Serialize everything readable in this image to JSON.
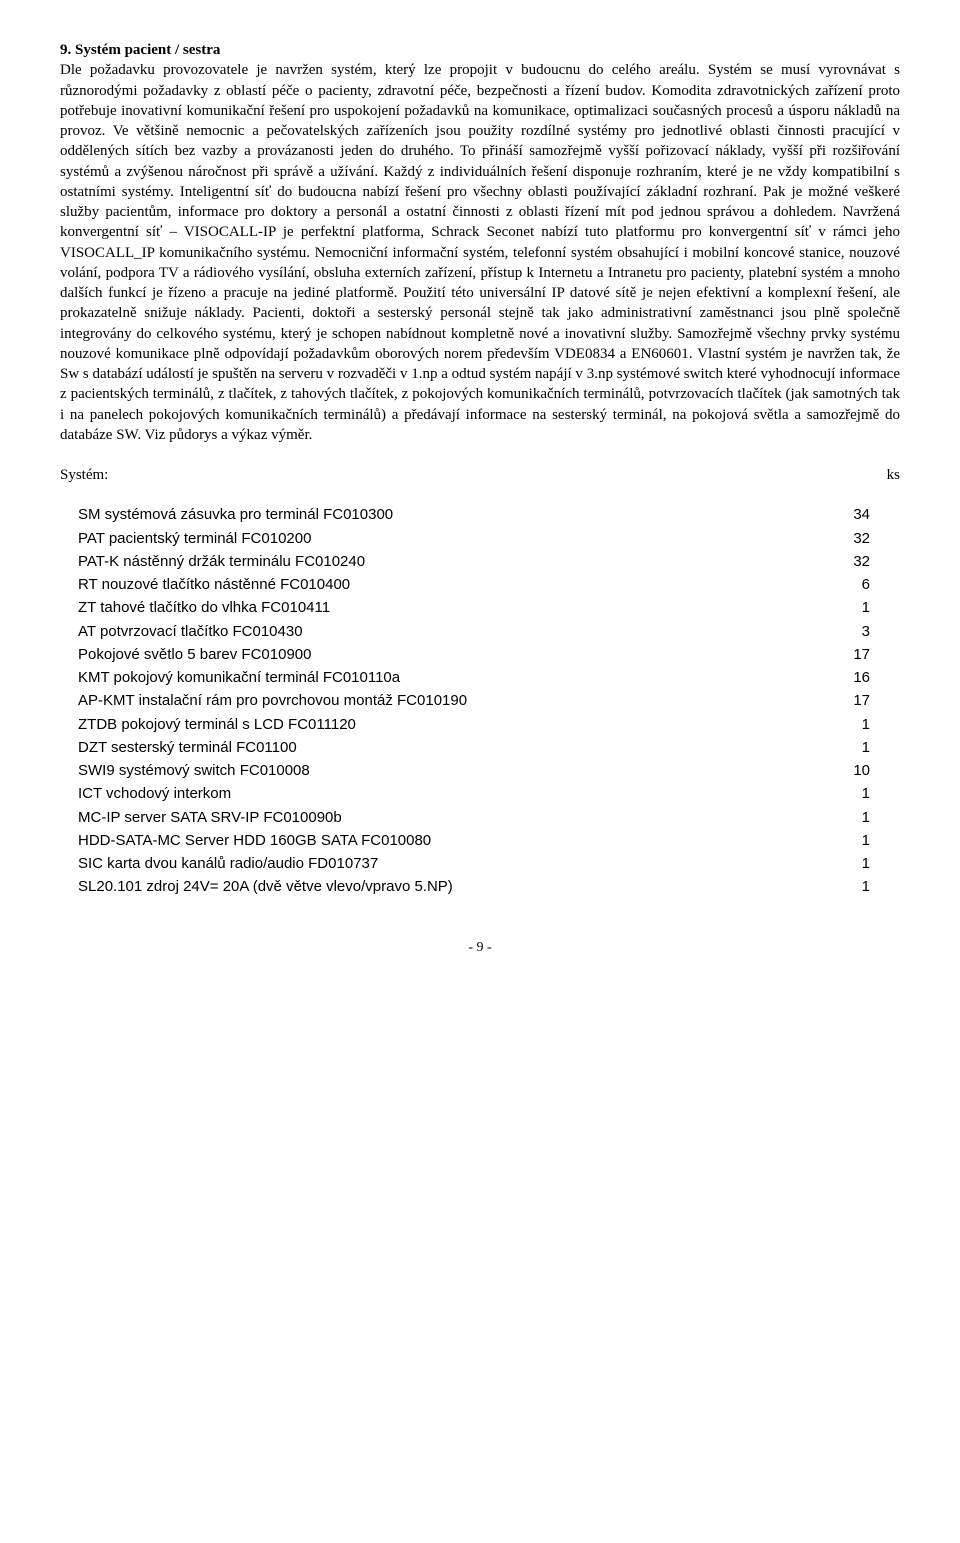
{
  "section": {
    "number": "9.",
    "title": "Systém pacient / sestra",
    "paragraph": "Dle požadavku provozovatele je navržen systém, který lze propojit v budoucnu do celého areálu. Systém se musí vyrovnávat s různorodými požadavky z oblastí péče o pacienty, zdravotní péče, bezpečnosti a řízení budov. Komodita zdravotnických zařízení proto potřebuje inovativní komunikační řešení pro uspokojení požadavků na komunikace, optimalizaci současných procesů a úsporu nákladů na provoz. Ve většině nemocnic a pečovatelských zařízeních jsou použity rozdílné systémy pro jednotlivé oblasti činnosti pracující v oddělených sítích bez vazby a provázanosti jeden do druhého. To přináší samozřejmě vyšší pořizovací náklady, vyšší při rozšiřování systémů a zvýšenou náročnost při správě a užívání. Každý z individuálních řešení disponuje rozhraním, které je ne vždy kompatibilní s ostatními systémy. Inteligentní síť do budoucna nabízí řešení pro všechny oblasti používající základní rozhraní. Pak je možné veškeré služby pacientům, informace pro doktory a personál a ostatní činnosti z oblasti řízení mít pod jednou správou a dohledem. Navržená konvergentní síť – VISOCALL-IP je perfektní platforma, Schrack Seconet nabízí tuto platformu pro konvergentní síť v rámci jeho VISOCALL_IP komunikačního systému. Nemocniční informační systém, telefonní systém obsahující i mobilní koncové stanice, nouzové volání, podpora TV a rádiového vysílání, obsluha externích zařízení, přístup k Internetu a Intranetu pro pacienty, platební systém a mnoho dalších funkcí je řízeno a pracuje na jediné platformě. Použití této universální IP datové sítě je nejen efektivní a komplexní řešení, ale prokazatelně snižuje náklady. Pacienti, doktoři a sesterský personál stejně tak jako administrativní zaměstnanci jsou plně společně integrovány do celkového systému, který je schopen nabídnout kompletně nové a inovativní služby. Samozřejmě všechny prvky systému nouzové komunikace plně odpovídají požadavkům oborových norem především VDE0834 a EN60601. Vlastní systém je navržen tak, že Sw s databází událostí je spuštěn na serveru v rozvaděči v 1.np a odtud systém napájí v 3.np systémové switch které vyhodnocují informace z pacientských terminálů, z tlačítek, z tahových tlačítek, z pokojových komunikačních terminálů, potvrzovacích tlačítek (jak samotných tak i na panelech pokojových komunikačních terminálů) a předávají informace na sesterský terminál, na pokojová světla a samozřejmě do databáze SW. Viz půdorys a výkaz výměr."
  },
  "table": {
    "header_left": "Systém:",
    "header_right": "ks",
    "items": [
      {
        "label": "SM systémová zásuvka pro terminál FC010300",
        "qty": "34"
      },
      {
        "label": "PAT pacientský terminál FC010200",
        "qty": "32"
      },
      {
        "label": "PAT-K nástěnný držák terminálu FC010240",
        "qty": "32"
      },
      {
        "label": "RT nouzové tlačítko nástěnné FC010400",
        "qty": "6"
      },
      {
        "label": "ZT tahové tlačítko do vlhka FC010411",
        "qty": "1"
      },
      {
        "label": "AT potvrzovací tlačítko FC010430",
        "qty": "3"
      },
      {
        "label": "Pokojové světlo 5 barev FC010900",
        "qty": "17"
      },
      {
        "label": "KMT pokojový komunikační terminál FC010110a",
        "qty": "16"
      },
      {
        "label": "AP-KMT instalační rám pro povrchovou montáž FC010190",
        "qty": "17"
      },
      {
        "label": "ZTDB pokojový terminál s LCD FC011120",
        "qty": "1"
      },
      {
        "label": "DZT sesterský terminál FC01100",
        "qty": "1"
      },
      {
        "label": "SWI9 systémový switch FC010008",
        "qty": "10"
      },
      {
        "label": "ICT vchodový interkom",
        "qty": "1"
      },
      {
        "label": "MC-IP server SATA SRV-IP FC010090b",
        "qty": "1"
      },
      {
        "label": "HDD-SATA-MC Server HDD 160GB SATA FC010080",
        "qty": "1"
      },
      {
        "label": "SIC karta dvou kanálů radio/audio FD010737",
        "qty": "1"
      },
      {
        "label": "SL20.101 zdroj 24V= 20A (dvě větve vlevo/vpravo 5.NP)",
        "qty": "1"
      }
    ]
  },
  "page_number": "- 9 -"
}
